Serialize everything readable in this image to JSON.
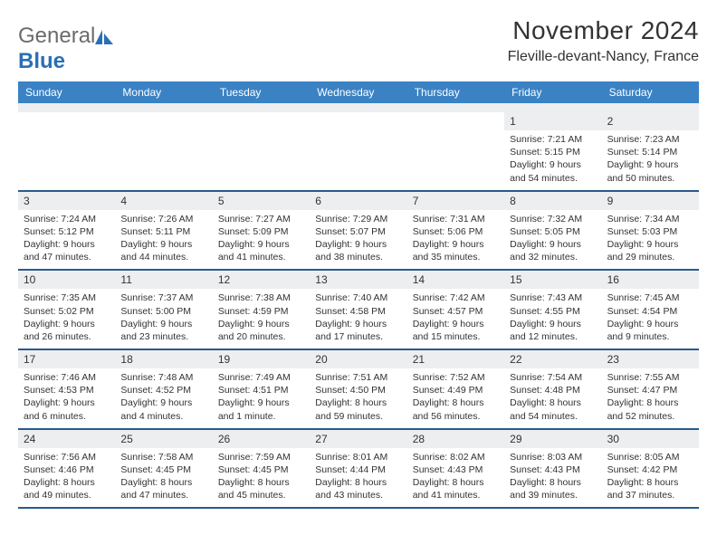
{
  "logo": {
    "text_gray": "General",
    "text_blue": "Blue"
  },
  "title": "November 2024",
  "location": "Fleville-devant-Nancy, France",
  "colors": {
    "header_bg": "#3a82c4",
    "daynum_bg": "#eceef0",
    "week_border": "#2a5a8c",
    "text": "#333333"
  },
  "day_names": [
    "Sunday",
    "Monday",
    "Tuesday",
    "Wednesday",
    "Thursday",
    "Friday",
    "Saturday"
  ],
  "weeks": [
    [
      {
        "n": null
      },
      {
        "n": null
      },
      {
        "n": null
      },
      {
        "n": null
      },
      {
        "n": null
      },
      {
        "n": "1",
        "sr": "7:21 AM",
        "ss": "5:15 PM",
        "dl": "9 hours and 54 minutes."
      },
      {
        "n": "2",
        "sr": "7:23 AM",
        "ss": "5:14 PM",
        "dl": "9 hours and 50 minutes."
      }
    ],
    [
      {
        "n": "3",
        "sr": "7:24 AM",
        "ss": "5:12 PM",
        "dl": "9 hours and 47 minutes."
      },
      {
        "n": "4",
        "sr": "7:26 AM",
        "ss": "5:11 PM",
        "dl": "9 hours and 44 minutes."
      },
      {
        "n": "5",
        "sr": "7:27 AM",
        "ss": "5:09 PM",
        "dl": "9 hours and 41 minutes."
      },
      {
        "n": "6",
        "sr": "7:29 AM",
        "ss": "5:07 PM",
        "dl": "9 hours and 38 minutes."
      },
      {
        "n": "7",
        "sr": "7:31 AM",
        "ss": "5:06 PM",
        "dl": "9 hours and 35 minutes."
      },
      {
        "n": "8",
        "sr": "7:32 AM",
        "ss": "5:05 PM",
        "dl": "9 hours and 32 minutes."
      },
      {
        "n": "9",
        "sr": "7:34 AM",
        "ss": "5:03 PM",
        "dl": "9 hours and 29 minutes."
      }
    ],
    [
      {
        "n": "10",
        "sr": "7:35 AM",
        "ss": "5:02 PM",
        "dl": "9 hours and 26 minutes."
      },
      {
        "n": "11",
        "sr": "7:37 AM",
        "ss": "5:00 PM",
        "dl": "9 hours and 23 minutes."
      },
      {
        "n": "12",
        "sr": "7:38 AM",
        "ss": "4:59 PM",
        "dl": "9 hours and 20 minutes."
      },
      {
        "n": "13",
        "sr": "7:40 AM",
        "ss": "4:58 PM",
        "dl": "9 hours and 17 minutes."
      },
      {
        "n": "14",
        "sr": "7:42 AM",
        "ss": "4:57 PM",
        "dl": "9 hours and 15 minutes."
      },
      {
        "n": "15",
        "sr": "7:43 AM",
        "ss": "4:55 PM",
        "dl": "9 hours and 12 minutes."
      },
      {
        "n": "16",
        "sr": "7:45 AM",
        "ss": "4:54 PM",
        "dl": "9 hours and 9 minutes."
      }
    ],
    [
      {
        "n": "17",
        "sr": "7:46 AM",
        "ss": "4:53 PM",
        "dl": "9 hours and 6 minutes."
      },
      {
        "n": "18",
        "sr": "7:48 AM",
        "ss": "4:52 PM",
        "dl": "9 hours and 4 minutes."
      },
      {
        "n": "19",
        "sr": "7:49 AM",
        "ss": "4:51 PM",
        "dl": "9 hours and 1 minute."
      },
      {
        "n": "20",
        "sr": "7:51 AM",
        "ss": "4:50 PM",
        "dl": "8 hours and 59 minutes."
      },
      {
        "n": "21",
        "sr": "7:52 AM",
        "ss": "4:49 PM",
        "dl": "8 hours and 56 minutes."
      },
      {
        "n": "22",
        "sr": "7:54 AM",
        "ss": "4:48 PM",
        "dl": "8 hours and 54 minutes."
      },
      {
        "n": "23",
        "sr": "7:55 AM",
        "ss": "4:47 PM",
        "dl": "8 hours and 52 minutes."
      }
    ],
    [
      {
        "n": "24",
        "sr": "7:56 AM",
        "ss": "4:46 PM",
        "dl": "8 hours and 49 minutes."
      },
      {
        "n": "25",
        "sr": "7:58 AM",
        "ss": "4:45 PM",
        "dl": "8 hours and 47 minutes."
      },
      {
        "n": "26",
        "sr": "7:59 AM",
        "ss": "4:45 PM",
        "dl": "8 hours and 45 minutes."
      },
      {
        "n": "27",
        "sr": "8:01 AM",
        "ss": "4:44 PM",
        "dl": "8 hours and 43 minutes."
      },
      {
        "n": "28",
        "sr": "8:02 AM",
        "ss": "4:43 PM",
        "dl": "8 hours and 41 minutes."
      },
      {
        "n": "29",
        "sr": "8:03 AM",
        "ss": "4:43 PM",
        "dl": "8 hours and 39 minutes."
      },
      {
        "n": "30",
        "sr": "8:05 AM",
        "ss": "4:42 PM",
        "dl": "8 hours and 37 minutes."
      }
    ]
  ],
  "labels": {
    "sunrise": "Sunrise:",
    "sunset": "Sunset:",
    "daylight": "Daylight:"
  }
}
